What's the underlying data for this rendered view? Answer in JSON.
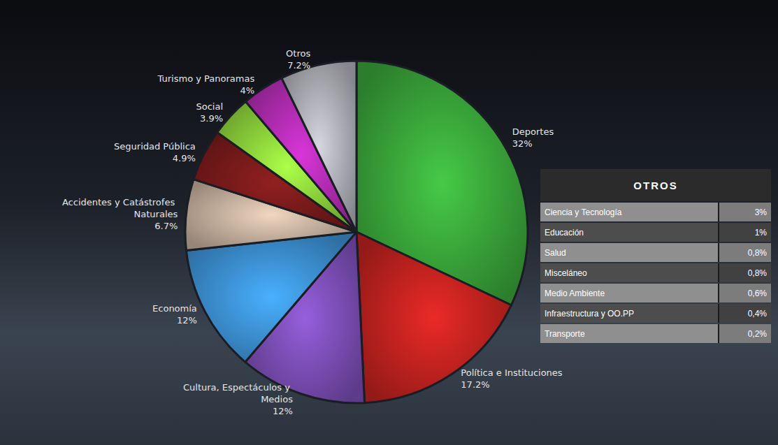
{
  "chart_data": {
    "type": "pie",
    "categories": [
      "Deportes",
      "Política e Instituciones",
      "Cultura, Espectáculos y Medios",
      "Economía",
      "Accidentes y Catástrofes Naturales",
      "Seguridad Pública",
      "Social",
      "Turismo y Panoramas",
      "Otros"
    ],
    "values": [
      32,
      17.2,
      12,
      12,
      6.7,
      4.9,
      3.9,
      4,
      7.2
    ],
    "value_labels": [
      "32%",
      "17.2%",
      "12%",
      "12%",
      "6.7%",
      "4.9%",
      "3.9%",
      "4%",
      "7.2%"
    ],
    "colors": [
      "#3aa83a",
      "#c42320",
      "#7d4fb8",
      "#3d93d6",
      "#c8b3a0",
      "#7a1b1b",
      "#8fd63c",
      "#b52db5",
      "#b2b2ba"
    ],
    "data_labels": true
  },
  "table": {
    "title": "OTROS",
    "rows": [
      [
        "Ciencia y Tecnología",
        "3%"
      ],
      [
        "Educación",
        "1%"
      ],
      [
        "Salud",
        "0,8%"
      ],
      [
        "Misceláneo",
        "0,8%"
      ],
      [
        "Medio Ambiente",
        "0,6%"
      ],
      [
        "Infraestructura y OO.PP",
        "0,4%"
      ],
      [
        "Transporte",
        "0,2%"
      ]
    ]
  }
}
